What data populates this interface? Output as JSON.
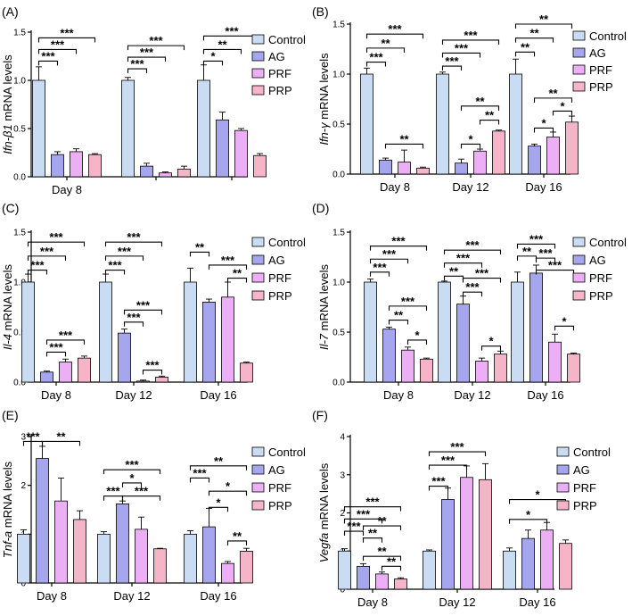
{
  "figure": {
    "groups": [
      "Control",
      "AG",
      "PRF",
      "PRP"
    ],
    "colors": {
      "Control": "#c9dcf3",
      "AG": "#a5a6ed",
      "PRF": "#ecaef5",
      "PRP": "#f5b4c8",
      "error": "#000000"
    }
  },
  "chart_data": [
    {
      "panel": "(A)",
      "type": "bar",
      "ylabel_parts": [
        {
          "t": "Ifn-β1",
          "italic": true
        },
        {
          "t": " mRNA levels",
          "italic": false
        }
      ],
      "ylim": [
        0,
        1.5
      ],
      "yticks": [
        0.0,
        0.5,
        1.0,
        1.5
      ],
      "ytick_labels": [
        "0.0",
        "0.5",
        "1.0",
        "1.5"
      ],
      "categories": [
        "Day 8",
        "",
        ""
      ],
      "series": [
        {
          "name": "Control",
          "values": [
            1.0,
            1.0,
            1.0
          ],
          "errors": [
            0.14,
            0.03,
            0.16
          ]
        },
        {
          "name": "AG",
          "values": [
            0.23,
            0.11,
            0.59
          ],
          "errors": [
            0.03,
            0.03,
            0.08
          ]
        },
        {
          "name": "PRF",
          "values": [
            0.26,
            0.04,
            0.48
          ],
          "errors": [
            0.03,
            0.01,
            0.02
          ]
        },
        {
          "name": "PRP",
          "values": [
            0.23,
            0.08,
            0.22
          ],
          "errors": [
            0.01,
            0.03,
            0.02
          ]
        }
      ],
      "significance": [
        {
          "cat": 0,
          "from": 0,
          "to": 1,
          "y": 1.2,
          "label": "***"
        },
        {
          "cat": 0,
          "from": 0,
          "to": 2,
          "y": 1.32,
          "label": "***"
        },
        {
          "cat": 0,
          "from": 0,
          "to": 3,
          "y": 1.44,
          "label": "***"
        },
        {
          "cat": 1,
          "from": 0,
          "to": 1,
          "y": 1.12,
          "label": "***"
        },
        {
          "cat": 1,
          "from": 0,
          "to": 2,
          "y": 1.24,
          "label": "***"
        },
        {
          "cat": 1,
          "from": 0,
          "to": 3,
          "y": 1.36,
          "label": "***"
        },
        {
          "cat": 2,
          "from": 0,
          "to": 1,
          "y": 1.2,
          "label": "*"
        },
        {
          "cat": 2,
          "from": 0,
          "to": 2,
          "y": 1.32,
          "label": "**"
        },
        {
          "cat": 2,
          "from": 0,
          "to": 3,
          "y": 1.46,
          "label": "***"
        }
      ]
    },
    {
      "panel": "(B)",
      "type": "bar",
      "ylabel_parts": [
        {
          "t": "Ifn-γ",
          "italic": true
        },
        {
          "t": " mRNA levels",
          "italic": false
        }
      ],
      "ylim": [
        0,
        1.5
      ],
      "yticks": [
        0.0,
        0.5,
        1.0,
        1.5
      ],
      "ytick_labels": [
        "0.0",
        "0.5",
        "1.0",
        "1.5"
      ],
      "categories": [
        "Day 8",
        "Day 12",
        "Day 16"
      ],
      "series": [
        {
          "name": "Control",
          "values": [
            1.0,
            1.0,
            1.0
          ],
          "errors": [
            0.06,
            0.02,
            0.15
          ]
        },
        {
          "name": "AG",
          "values": [
            0.14,
            0.11,
            0.28
          ],
          "errors": [
            0.02,
            0.04,
            0.02
          ]
        },
        {
          "name": "PRF",
          "values": [
            0.12,
            0.23,
            0.37
          ],
          "errors": [
            0.12,
            0.02,
            0.05
          ]
        },
        {
          "name": "PRP",
          "values": [
            0.06,
            0.43,
            0.52
          ],
          "errors": [
            0.01,
            0.01,
            0.06
          ]
        }
      ],
      "significance": [
        {
          "cat": 0,
          "from": 0,
          "to": 1,
          "y": 1.12,
          "label": "***"
        },
        {
          "cat": 0,
          "from": 0,
          "to": 2,
          "y": 1.26,
          "label": "**"
        },
        {
          "cat": 0,
          "from": 0,
          "to": 3,
          "y": 1.4,
          "label": "***"
        },
        {
          "cat": 0,
          "from": 1,
          "to": 3,
          "y": 0.3,
          "label": "**"
        },
        {
          "cat": 1,
          "from": 0,
          "to": 1,
          "y": 1.08,
          "label": "***"
        },
        {
          "cat": 1,
          "from": 0,
          "to": 2,
          "y": 1.21,
          "label": "***"
        },
        {
          "cat": 1,
          "from": 0,
          "to": 3,
          "y": 1.34,
          "label": "***"
        },
        {
          "cat": 1,
          "from": 1,
          "to": 2,
          "y": 0.3,
          "label": "*"
        },
        {
          "cat": 1,
          "from": 1,
          "to": 3,
          "y": 0.68,
          "label": "**"
        },
        {
          "cat": 1,
          "from": 2,
          "to": 3,
          "y": 0.54,
          "label": "**"
        },
        {
          "cat": 2,
          "from": 0,
          "to": 1,
          "y": 1.22,
          "label": "**"
        },
        {
          "cat": 2,
          "from": 0,
          "to": 2,
          "y": 1.36,
          "label": "**"
        },
        {
          "cat": 2,
          "from": 0,
          "to": 3,
          "y": 1.5,
          "label": "**"
        },
        {
          "cat": 2,
          "from": 1,
          "to": 2,
          "y": 0.46,
          "label": "*"
        },
        {
          "cat": 2,
          "from": 1,
          "to": 3,
          "y": 0.76,
          "label": "**"
        },
        {
          "cat": 2,
          "from": 2,
          "to": 3,
          "y": 0.63,
          "label": "*"
        }
      ]
    },
    {
      "panel": "(C)",
      "type": "bar",
      "ylabel_parts": [
        {
          "t": "Il-4",
          "italic": true
        },
        {
          "t": " mRNA levels",
          "italic": false
        }
      ],
      "ylim": [
        0,
        1.5
      ],
      "yticks": [
        0.0,
        0.5,
        1.0,
        1.5
      ],
      "ytick_labels": [
        "0.0",
        "0.5",
        "1.0",
        "1.5"
      ],
      "categories": [
        "Day 8",
        "Day 12",
        "Day 16"
      ],
      "series": [
        {
          "name": "Control",
          "values": [
            1.0,
            1.0,
            1.0
          ],
          "errors": [
            0.08,
            0.08,
            0.14
          ]
        },
        {
          "name": "AG",
          "values": [
            0.1,
            0.49,
            0.8
          ],
          "errors": [
            0.01,
            0.04,
            0.03
          ]
        },
        {
          "name": "PRF",
          "values": [
            0.2,
            0.01,
            0.85
          ],
          "errors": [
            0.03,
            0.01,
            0.15
          ]
        },
        {
          "name": "PRP",
          "values": [
            0.24,
            0.05,
            0.19
          ],
          "errors": [
            0.02,
            0.01,
            0.01
          ]
        }
      ],
      "significance": [
        {
          "cat": 0,
          "from": 0,
          "to": 1,
          "y": 1.12,
          "label": "***"
        },
        {
          "cat": 0,
          "from": 0,
          "to": 2,
          "y": 1.26,
          "label": "***"
        },
        {
          "cat": 0,
          "from": 0,
          "to": 3,
          "y": 1.4,
          "label": "***"
        },
        {
          "cat": 0,
          "from": 1,
          "to": 2,
          "y": 0.3,
          "label": "***"
        },
        {
          "cat": 0,
          "from": 1,
          "to": 3,
          "y": 0.42,
          "label": "***"
        },
        {
          "cat": 1,
          "from": 0,
          "to": 1,
          "y": 1.12,
          "label": "***"
        },
        {
          "cat": 1,
          "from": 0,
          "to": 2,
          "y": 1.26,
          "label": "***"
        },
        {
          "cat": 1,
          "from": 0,
          "to": 3,
          "y": 1.4,
          "label": "***"
        },
        {
          "cat": 1,
          "from": 1,
          "to": 2,
          "y": 0.6,
          "label": "***"
        },
        {
          "cat": 1,
          "from": 1,
          "to": 3,
          "y": 0.72,
          "label": "***"
        },
        {
          "cat": 1,
          "from": 2,
          "to": 3,
          "y": 0.12,
          "label": "***"
        },
        {
          "cat": 2,
          "from": 0,
          "to": 1,
          "y": 1.3,
          "label": "**"
        },
        {
          "cat": 2,
          "from": 1,
          "to": 3,
          "y": 1.17,
          "label": "***"
        },
        {
          "cat": 2,
          "from": 2,
          "to": 3,
          "y": 1.04,
          "label": "**"
        }
      ]
    },
    {
      "panel": "(D)",
      "type": "bar",
      "ylabel_parts": [
        {
          "t": "Il-7",
          "italic": true
        },
        {
          "t": " mRNA levels",
          "italic": false
        }
      ],
      "ylim": [
        0,
        1.5
      ],
      "yticks": [
        0.0,
        0.5,
        1.0,
        1.5
      ],
      "ytick_labels": [
        "0.0",
        "0.5",
        "1.0",
        "1.5"
      ],
      "categories": [
        "Day 8",
        "Day 12",
        "Day 16"
      ],
      "series": [
        {
          "name": "Control",
          "values": [
            1.0,
            1.0,
            1.0
          ],
          "errors": [
            0.03,
            0.01,
            0.1
          ]
        },
        {
          "name": "AG",
          "values": [
            0.53,
            0.78,
            1.09
          ],
          "errors": [
            0.02,
            0.08,
            0.08
          ]
        },
        {
          "name": "PRF",
          "values": [
            0.32,
            0.21,
            0.4
          ],
          "errors": [
            0.03,
            0.03,
            0.08
          ]
        },
        {
          "name": "PRP",
          "values": [
            0.23,
            0.28,
            0.28
          ],
          "errors": [
            0.01,
            0.03,
            0.01
          ]
        }
      ],
      "significance": [
        {
          "cat": 0,
          "from": 0,
          "to": 1,
          "y": 1.1,
          "label": "***"
        },
        {
          "cat": 0,
          "from": 0,
          "to": 2,
          "y": 1.23,
          "label": "***"
        },
        {
          "cat": 0,
          "from": 0,
          "to": 3,
          "y": 1.36,
          "label": "***"
        },
        {
          "cat": 0,
          "from": 1,
          "to": 2,
          "y": 0.62,
          "label": "**"
        },
        {
          "cat": 0,
          "from": 1,
          "to": 3,
          "y": 0.76,
          "label": "***"
        },
        {
          "cat": 0,
          "from": 2,
          "to": 3,
          "y": 0.42,
          "label": "*"
        },
        {
          "cat": 1,
          "from": 0,
          "to": 1,
          "y": 1.06,
          "label": "**"
        },
        {
          "cat": 1,
          "from": 0,
          "to": 2,
          "y": 1.19,
          "label": "***"
        },
        {
          "cat": 1,
          "from": 0,
          "to": 3,
          "y": 1.32,
          "label": "***"
        },
        {
          "cat": 1,
          "from": 1,
          "to": 2,
          "y": 0.9,
          "label": "***"
        },
        {
          "cat": 1,
          "from": 1,
          "to": 3,
          "y": 1.04,
          "label": "***"
        },
        {
          "cat": 1,
          "from": 2,
          "to": 3,
          "y": 0.36,
          "label": "*"
        },
        {
          "cat": 2,
          "from": 0,
          "to": 1,
          "y": 1.26,
          "label": "**"
        },
        {
          "cat": 2,
          "from": 0,
          "to": 2,
          "y": 1.38,
          "label": "***"
        },
        {
          "cat": 2,
          "from": 1,
          "to": 2,
          "y": 1.24,
          "label": "***"
        },
        {
          "cat": 2,
          "from": 1,
          "to": 3,
          "y": 1.12,
          "label": "***"
        },
        {
          "cat": 2,
          "from": 2,
          "to": 3,
          "y": 0.56,
          "label": "*"
        }
      ]
    },
    {
      "panel": "(E)",
      "type": "bar",
      "ylabel_parts": [
        {
          "t": "Tnf-a",
          "italic": true
        },
        {
          "t": " mRNA levels",
          "italic": false
        }
      ],
      "ylim": [
        0,
        3
      ],
      "yticks": [
        0,
        1,
        2,
        3
      ],
      "ytick_labels": [
        "0",
        "1",
        "2",
        "3"
      ],
      "categories": [
        "Day 8",
        "Day 12",
        "Day 16"
      ],
      "series": [
        {
          "name": "Control",
          "values": [
            1.0,
            1.0,
            1.0
          ],
          "errors": [
            0.09,
            0.05,
            0.07
          ]
        },
        {
          "name": "AG",
          "values": [
            2.55,
            1.62,
            1.15
          ],
          "errors": [
            0.25,
            0.06,
            0.38
          ]
        },
        {
          "name": "PRF",
          "values": [
            1.68,
            1.1,
            0.4
          ],
          "errors": [
            0.47,
            0.25,
            0.04
          ]
        },
        {
          "name": "PRP",
          "values": [
            1.3,
            0.7,
            0.65
          ],
          "errors": [
            0.18,
            0.01,
            0.06
          ]
        }
      ],
      "significance": [
        {
          "cat": 0,
          "from": 0,
          "to": 1,
          "y": 2.9,
          "label": "***"
        },
        {
          "cat": 0,
          "from": 1,
          "to": 3,
          "y": 2.9,
          "label": "**"
        },
        {
          "cat": 1,
          "from": 0,
          "to": 1,
          "y": 1.78,
          "label": "***"
        },
        {
          "cat": 1,
          "from": 1,
          "to": 3,
          "y": 1.78,
          "label": "***"
        },
        {
          "cat": 1,
          "from": 1,
          "to": 2,
          "y": 2.05,
          "label": "*"
        },
        {
          "cat": 1,
          "from": 0,
          "to": 3,
          "y": 2.32,
          "label": "***"
        },
        {
          "cat": 2,
          "from": 0,
          "to": 1,
          "y": 2.15,
          "label": "***"
        },
        {
          "cat": 2,
          "from": 0,
          "to": 3,
          "y": 2.4,
          "label": "**"
        },
        {
          "cat": 2,
          "from": 1,
          "to": 3,
          "y": 1.88,
          "label": "*"
        },
        {
          "cat": 2,
          "from": 1,
          "to": 2,
          "y": 1.55,
          "label": "*"
        },
        {
          "cat": 2,
          "from": 2,
          "to": 3,
          "y": 0.86,
          "label": "**"
        }
      ]
    },
    {
      "panel": "(F)",
      "type": "bar",
      "ylabel_parts": [
        {
          "t": "Vegfa",
          "italic": true
        },
        {
          "t": " mRNA levels",
          "italic": false
        }
      ],
      "ylim": [
        0,
        4
      ],
      "yticks": [
        0,
        1,
        2,
        3,
        4
      ],
      "ytick_labels": [
        "0",
        "1",
        "2",
        "3",
        "4"
      ],
      "categories": [
        "Day 8",
        "Day 12",
        "Day 16"
      ],
      "series": [
        {
          "name": "Control",
          "values": [
            1.0,
            1.0,
            1.0
          ],
          "errors": [
            0.06,
            0.03,
            0.08
          ]
        },
        {
          "name": "AG",
          "values": [
            0.6,
            2.35,
            1.33
          ],
          "errors": [
            0.07,
            0.3,
            0.22
          ]
        },
        {
          "name": "PRF",
          "values": [
            0.4,
            2.93,
            1.55
          ],
          "errors": [
            0.05,
            0.3,
            0.2
          ]
        },
        {
          "name": "PRP",
          "values": [
            0.27,
            2.87,
            1.2
          ],
          "errors": [
            0.03,
            0.42,
            0.09
          ]
        }
      ],
      "significance": [
        {
          "cat": 0,
          "from": 0,
          "to": 1,
          "y": 1.52,
          "label": "***"
        },
        {
          "cat": 0,
          "from": 0,
          "to": 2,
          "y": 1.84,
          "label": "***"
        },
        {
          "cat": 0,
          "from": 0,
          "to": 3,
          "y": 2.16,
          "label": "***"
        },
        {
          "cat": 0,
          "from": 1,
          "to": 2,
          "y": 1.34,
          "label": "**"
        },
        {
          "cat": 0,
          "from": 1,
          "to": 3,
          "y": 1.66,
          "label": "**"
        },
        {
          "cat": 0,
          "from": 2,
          "to": 3,
          "y": 0.6,
          "label": "**"
        },
        {
          "cat": 0,
          "from": 1,
          "to": 3,
          "y": 0.86,
          "label": "**"
        },
        {
          "cat": 1,
          "from": 0,
          "to": 1,
          "y": 2.7,
          "label": "***"
        },
        {
          "cat": 1,
          "from": 0,
          "to": 2,
          "y": 3.25,
          "label": "***"
        },
        {
          "cat": 1,
          "from": 0,
          "to": 3,
          "y": 3.6,
          "label": "***"
        },
        {
          "cat": 2,
          "from": 0,
          "to": 2,
          "y": 1.83,
          "label": "*"
        },
        {
          "cat": 2,
          "from": 0,
          "to": 3,
          "y": 2.35,
          "label": "*"
        }
      ]
    }
  ]
}
